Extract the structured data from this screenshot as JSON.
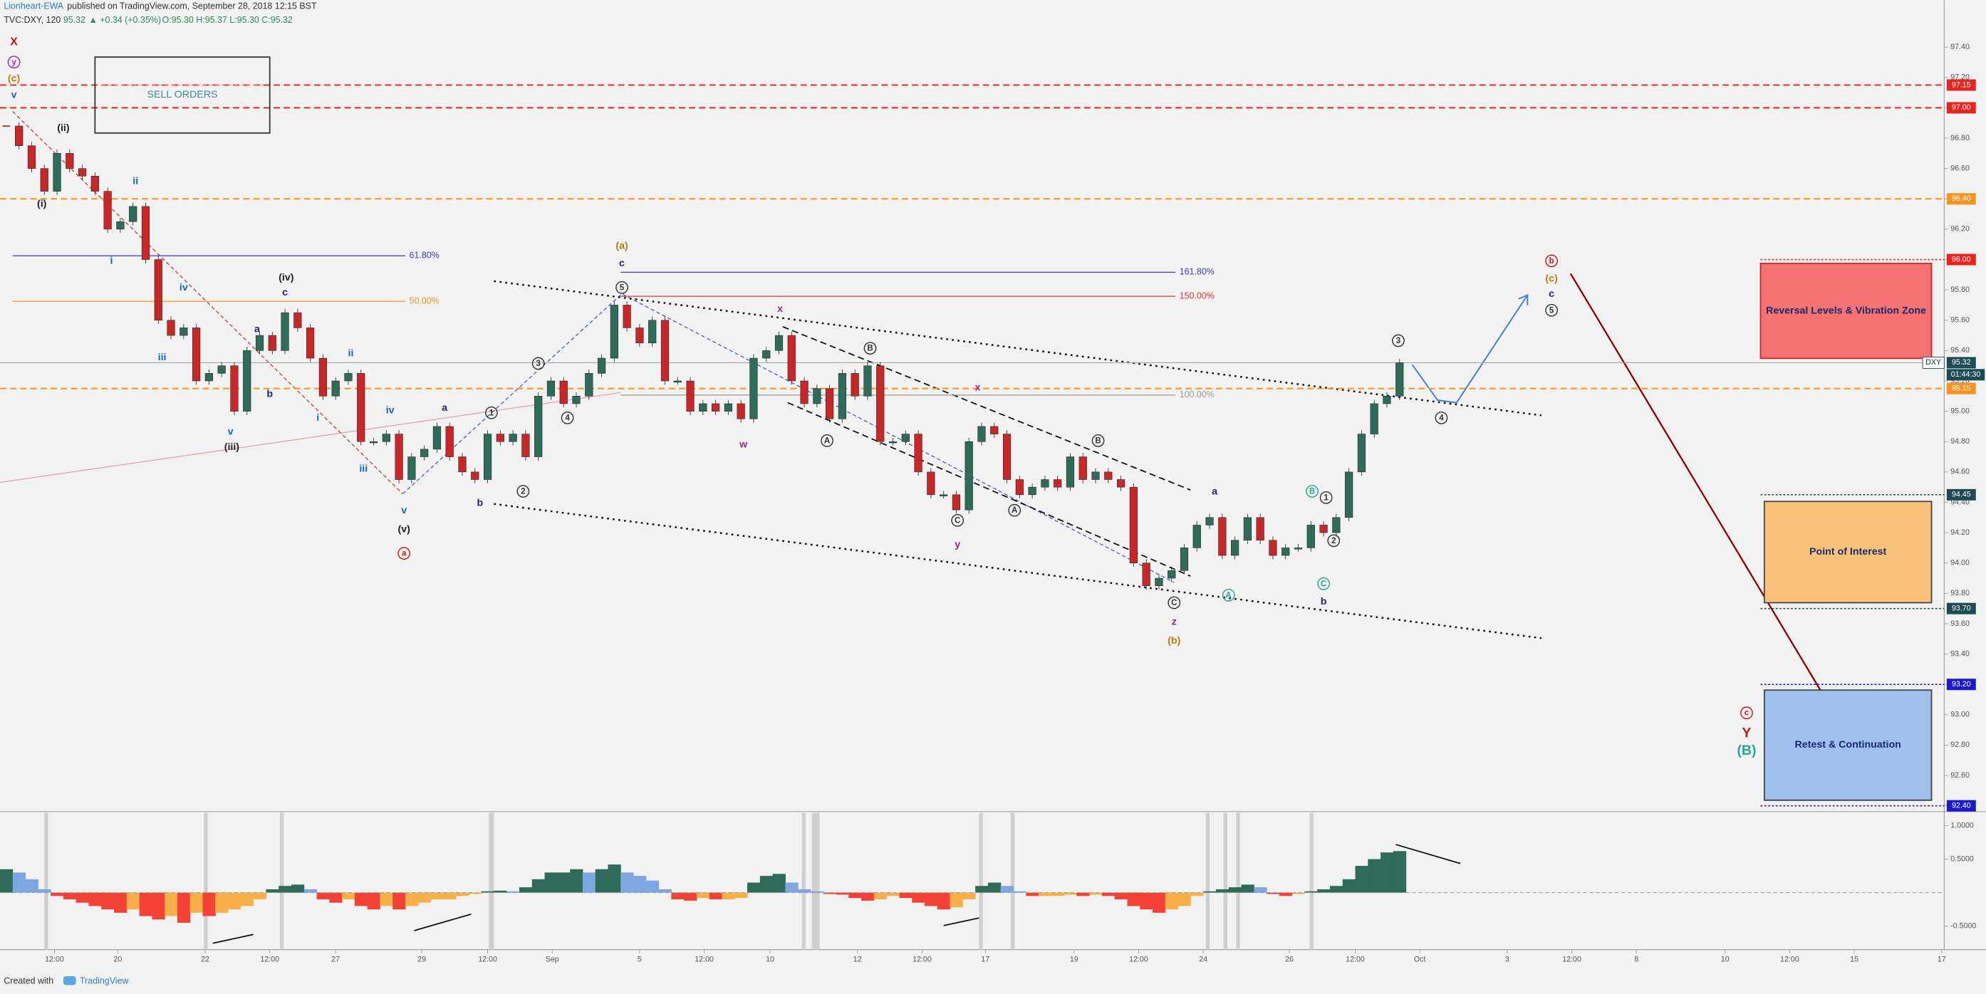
{
  "header": {
    "author": "Lionheart-EWA",
    "published": "published on TradingView.com, September 28, 2018 12:15 BST",
    "symbol": "TVC:DXY, 120",
    "last": "95.32",
    "change": "▲ +0.34 (+0.35%)",
    "ohlc": "O:95.30 H:95.37 L:95.30 C:95.32"
  },
  "price_chart": {
    "type": "candlestick",
    "ylim": [
      92.37,
      97.71
    ],
    "xlim": [
      -0.5,
      153
    ],
    "yticks": [
      {
        "value": 92.4,
        "label": "92.40"
      },
      {
        "value": 92.6,
        "label": "92.60"
      },
      {
        "value": 92.8,
        "label": "92.80"
      },
      {
        "value": 93,
        "label": "93.00"
      },
      {
        "value": 93.2,
        "label": "93.20"
      },
      {
        "value": 93.4,
        "label": "93.40"
      },
      {
        "value": 93.6,
        "label": "93.60"
      },
      {
        "value": 93.8,
        "label": "93.80"
      },
      {
        "value": 94,
        "label": "94.00"
      },
      {
        "value": 94.2,
        "label": "94.20"
      },
      {
        "value": 94.4,
        "label": "94.40"
      },
      {
        "value": 94.6,
        "label": "94.60"
      },
      {
        "value": 94.8,
        "label": "94.80"
      },
      {
        "value": 95,
        "label": "95.00"
      },
      {
        "value": 95.2,
        "label": "95.20"
      },
      {
        "value": 95.4,
        "label": "95.40"
      },
      {
        "value": 95.6,
        "label": "95.60"
      },
      {
        "value": 95.8,
        "label": "95.80"
      },
      {
        "value": 96,
        "label": "96.00"
      },
      {
        "value": 96.2,
        "label": "96.20"
      },
      {
        "value": 96.4,
        "label": "96.40"
      },
      {
        "value": 96.6,
        "label": "96.60"
      },
      {
        "value": 96.8,
        "label": "96.80"
      },
      {
        "value": 97,
        "label": "97.00"
      },
      {
        "value": 97.2,
        "label": "97.20"
      },
      {
        "value": 97.4,
        "label": "97.40"
      }
    ],
    "xticks": [
      {
        "value": 3.8,
        "label": "12:00"
      },
      {
        "value": 8.8,
        "label": "20"
      },
      {
        "value": 15.7,
        "label": "22"
      },
      {
        "value": 20.8,
        "label": "12:00"
      },
      {
        "value": 26,
        "label": "27"
      },
      {
        "value": 32.8,
        "label": "29"
      },
      {
        "value": 38,
        "label": "12:00"
      },
      {
        "value": 43.1,
        "label": "Sep"
      },
      {
        "value": 50,
        "label": "5"
      },
      {
        "value": 55.1,
        "label": "12:00"
      },
      {
        "value": 60.3,
        "label": "10"
      },
      {
        "value": 67.2,
        "label": "12"
      },
      {
        "value": 72.3,
        "label": "12:00"
      },
      {
        "value": 77.3,
        "label": "17"
      },
      {
        "value": 84.3,
        "label": "19"
      },
      {
        "value": 89.4,
        "label": "12:00"
      },
      {
        "value": 94.5,
        "label": "24"
      },
      {
        "value": 101.3,
        "label": "26"
      },
      {
        "value": 106.5,
        "label": "12:00"
      },
      {
        "value": 111.6,
        "label": "Oct"
      },
      {
        "value": 118.5,
        "label": "3"
      },
      {
        "value": 123.6,
        "label": "12:00"
      },
      {
        "value": 128.7,
        "label": "8"
      },
      {
        "value": 135.7,
        "label": "10"
      },
      {
        "value": 140.8,
        "label": "12:00"
      },
      {
        "value": 145.9,
        "label": "15"
      },
      {
        "value": 152.8,
        "label": "17"
      }
    ],
    "up_color": "#2e6b5b",
    "down_color": "#c62828",
    "closes": [
      96.88,
      96.75,
      96.6,
      96.45,
      96.7,
      96.6,
      96.55,
      96.45,
      96.2,
      96.25,
      96.35,
      96.0,
      95.6,
      95.5,
      95.55,
      95.2,
      95.25,
      95.3,
      95.0,
      95.4,
      95.5,
      95.4,
      95.65,
      95.55,
      95.35,
      95.1,
      95.2,
      95.25,
      94.8,
      94.8,
      94.85,
      94.55,
      94.7,
      94.75,
      94.9,
      94.7,
      94.6,
      94.55,
      94.85,
      94.8,
      94.85,
      94.7,
      95.1,
      95.2,
      95.05,
      95.1,
      95.25,
      95.35,
      95.7,
      95.55,
      95.45,
      95.6,
      95.2,
      95.2,
      95.0,
      95.05,
      95.0,
      95.05,
      94.95,
      95.35,
      95.4,
      95.5,
      95.2,
      95.05,
      95.15,
      94.95,
      95.25,
      95.1,
      95.3,
      94.8,
      94.8,
      94.85,
      94.6,
      94.45,
      94.45,
      94.35,
      94.8,
      94.9,
      94.85,
      94.55,
      94.45,
      94.5,
      94.55,
      94.5,
      94.7,
      94.55,
      94.6,
      94.55,
      94.5,
      94.0,
      93.85,
      93.9,
      93.95,
      94.1,
      94.25,
      94.3,
      94.05,
      94.15,
      94.3,
      94.15,
      94.05,
      94.1,
      94.1,
      94.25,
      94.2,
      94.3,
      94.6,
      94.85,
      95.05,
      95.1,
      95.32
    ]
  },
  "levels": [
    {
      "value": 97.15,
      "label": "97.15",
      "color": "#e8241e",
      "line": "dashed"
    },
    {
      "value": 97.0,
      "label": "97.00",
      "color": "#e8241e",
      "line": "dashed"
    },
    {
      "value": 96.4,
      "label": "96.40",
      "color": "#f7931e",
      "line": "dashed"
    },
    {
      "value": 96.0,
      "label": "96.00",
      "color": "#e8241e",
      "line": "dotted"
    },
    {
      "value": 95.15,
      "label": "95.15",
      "color": "#f7931e",
      "line": "dashed"
    },
    {
      "value": 94.45,
      "label": "94.45",
      "color": "#1c4a55",
      "line": "dotted"
    },
    {
      "value": 93.7,
      "label": "93.70",
      "color": "#1c4a55",
      "line": "dotted"
    },
    {
      "value": 93.2,
      "label": "93.20",
      "color": "#1a1acc",
      "line": "dotted"
    },
    {
      "value": 92.4,
      "label": "92.40",
      "color": "#1a1acc",
      "line": "dotted"
    }
  ],
  "current": {
    "symbol": "DXY",
    "value": 95.32,
    "label": "95.32",
    "countdown": "01:44:30",
    "color": "#1c4a55"
  },
  "fibs": [
    "61.80%",
    "50.00%",
    "161.80%",
    "150.00%",
    "100.00%"
  ],
  "waves": [
    "X",
    "y",
    "(c)",
    "v",
    "(ii)",
    "(i)",
    "ii",
    "i",
    "iv",
    "iii",
    "(iv)",
    "c",
    "a",
    "b",
    "v",
    "(iii)",
    "ii",
    "i",
    "iv",
    "iii",
    "v",
    "(v)",
    "a",
    "a",
    "b",
    "1",
    "2",
    "3",
    "4",
    "(a)",
    "c",
    "5",
    "x",
    "B",
    "x",
    "w",
    "A",
    "y",
    "C",
    "A",
    "B",
    "C",
    "z",
    "(b)",
    "a",
    "A",
    "B",
    "1",
    "2",
    "C",
    "b",
    "3",
    "4",
    "b",
    "(c)",
    "c",
    "5",
    "c",
    "Y",
    "(B)"
  ],
  "boxes": [
    "SELL ORDERS",
    "Reversal Levels & Vibration Zone",
    "Point of Interest",
    "Retest & Continuation"
  ],
  "oscillator": {
    "type": "histogram",
    "ylim": [
      -0.85,
      1.19
    ],
    "yticks": [
      {
        "value": 1,
        "label": "1.0000"
      },
      {
        "value": 0.5,
        "label": "0.5000"
      },
      {
        "value": -0.5,
        "label": "-0.5000"
      }
    ],
    "values": [
      0.35,
      0.3,
      0.2,
      0.05,
      -0.05,
      -0.1,
      -0.15,
      -0.2,
      -0.25,
      -0.3,
      -0.25,
      -0.35,
      -0.4,
      -0.35,
      -0.45,
      -0.3,
      -0.35,
      -0.3,
      -0.25,
      -0.2,
      -0.1,
      0.05,
      0.1,
      0.12,
      0.05,
      -0.1,
      -0.15,
      -0.1,
      -0.2,
      -0.25,
      -0.2,
      -0.25,
      -0.2,
      -0.15,
      -0.1,
      -0.1,
      -0.05,
      -0.02,
      0.02,
      0.03,
      0.02,
      0.08,
      0.2,
      0.3,
      0.3,
      0.35,
      0.3,
      0.35,
      0.42,
      0.3,
      0.25,
      0.18,
      0.05,
      -0.1,
      -0.12,
      -0.08,
      -0.1,
      -0.1,
      -0.08,
      0.15,
      0.25,
      0.28,
      0.15,
      0.05,
      0.02,
      -0.02,
      -0.03,
      -0.08,
      -0.12,
      -0.1,
      -0.05,
      -0.08,
      -0.15,
      -0.2,
      -0.25,
      -0.22,
      -0.1,
      0.1,
      0.15,
      0.1,
      0.02,
      -0.05,
      -0.05,
      -0.05,
      -0.03,
      -0.05,
      -0.03,
      -0.05,
      -0.1,
      -0.2,
      -0.25,
      -0.3,
      -0.25,
      -0.2,
      -0.05,
      0.02,
      0.05,
      0.08,
      0.12,
      0.08,
      -0.02,
      -0.05,
      -0.02,
      0.02,
      0.05,
      0.1,
      0.2,
      0.4,
      0.5,
      0.6,
      0.62
    ],
    "colors": {
      "up_rising": "#2f6b5a",
      "up_falling": "#7ea6e0",
      "down_falling": "#f44336",
      "down_rising": "#f9b04a"
    }
  },
  "footer": {
    "created": "Created with",
    "brand": "TradingView"
  }
}
